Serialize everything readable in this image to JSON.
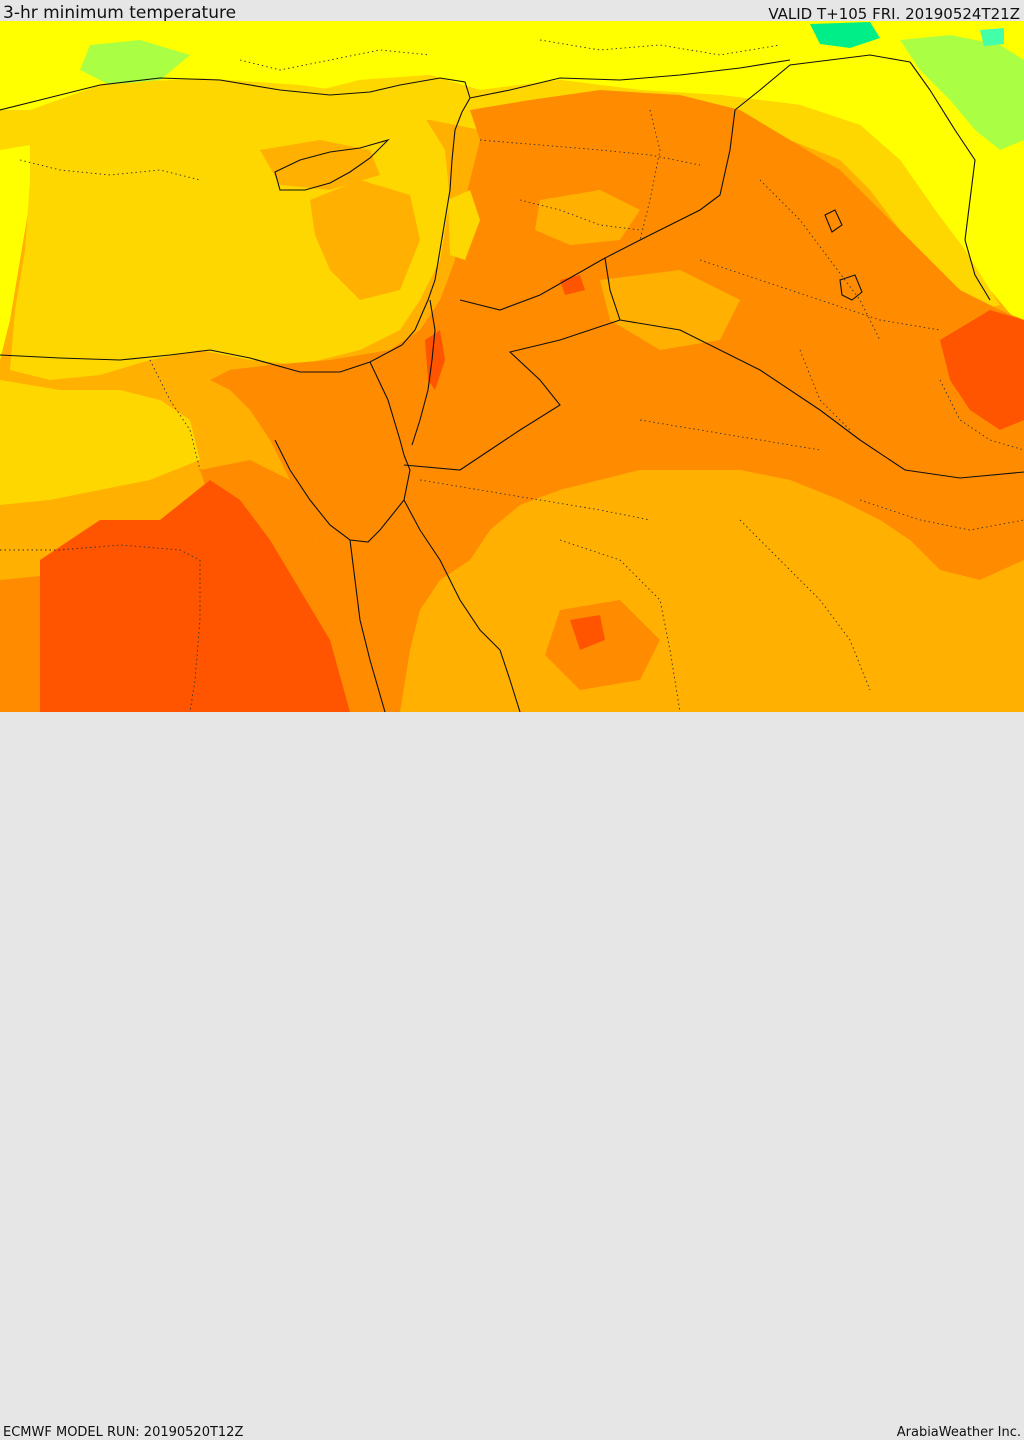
{
  "header": {
    "title": "3-hr minimum temperature",
    "valid": "VALID T+105 FRI. 20190524T21Z"
  },
  "footer": {
    "model_run": "ECMWF MODEL RUN: 20190520T12Z",
    "credit": "ArabiaWeather Inc."
  },
  "map": {
    "region": "Eastern Mediterranean and Middle East",
    "field": "3-hr minimum temperature",
    "colors": {
      "yellow": "#ffff00",
      "light_orange": "#ffd700",
      "orange": "#ffb000",
      "dark_orange": "#ff8c00",
      "red_orange": "#ff5500",
      "green": "#aaff44",
      "teal": "#00ee88",
      "border_line": "#111111",
      "province_line": "#333333"
    }
  }
}
